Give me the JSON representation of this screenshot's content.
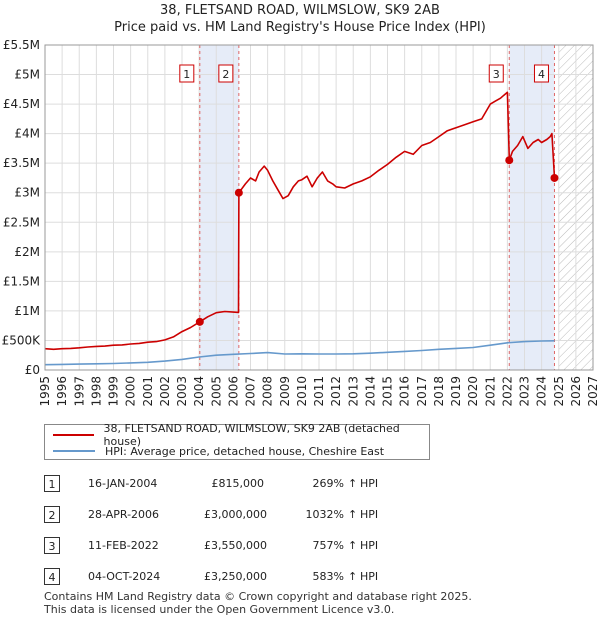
{
  "chart_data": {
    "type": "line",
    "title": "38, FLETSAND ROAD, WILMSLOW, SK9 2AB",
    "subtitle": "Price paid vs. HM Land Registry's House Price Index (HPI)",
    "ylim": [
      0,
      5500000
    ],
    "xlim": [
      1995,
      2027
    ],
    "y_ticks": [
      {
        "value": 0,
        "label": "£0"
      },
      {
        "value": 500000,
        "label": "£500K"
      },
      {
        "value": 1000000,
        "label": "£1M"
      },
      {
        "value": 1500000,
        "label": "£1.5M"
      },
      {
        "value": 2000000,
        "label": "£2M"
      },
      {
        "value": 2500000,
        "label": "£2.5M"
      },
      {
        "value": 3000000,
        "label": "£3M"
      },
      {
        "value": 3500000,
        "label": "£3.5M"
      },
      {
        "value": 4000000,
        "label": "£4M"
      },
      {
        "value": 4500000,
        "label": "£4.5M"
      },
      {
        "value": 5000000,
        "label": "£5M"
      },
      {
        "value": 5500000,
        "label": "£5.5M"
      }
    ],
    "x_ticks": [
      "1995",
      "1996",
      "1997",
      "1998",
      "1999",
      "2000",
      "2001",
      "2002",
      "2003",
      "2004",
      "2005",
      "2006",
      "2007",
      "2008",
      "2009",
      "2010",
      "2011",
      "2012",
      "2013",
      "2014",
      "2015",
      "2016",
      "2017",
      "2018",
      "2019",
      "2020",
      "2021",
      "2022",
      "2023",
      "2024",
      "2025",
      "2026",
      "2027"
    ],
    "shaded_regions": [
      [
        2004.04,
        2006.32
      ],
      [
        2022.11,
        2024.75
      ]
    ],
    "future_from": 2025.0,
    "series": [
      {
        "name": "38, FLETSAND ROAD, WILMSLOW, SK9 2AB (detached house)",
        "color": "#cc0000",
        "x": [
          1995.0,
          1995.5,
          1996.0,
          1996.5,
          1997.0,
          1997.5,
          1998.0,
          1998.5,
          1999.0,
          1999.5,
          2000.0,
          2000.5,
          2001.0,
          2001.5,
          2002.0,
          2002.5,
          2003.0,
          2003.5,
          2004.04,
          2004.5,
          2005.0,
          2005.5,
          2006.0,
          2006.3,
          2006.32,
          2006.7,
          2007.0,
          2007.3,
          2007.5,
          2007.8,
          2008.0,
          2008.3,
          2008.6,
          2008.9,
          2009.2,
          2009.5,
          2009.8,
          2010.0,
          2010.3,
          2010.6,
          2010.9,
          2011.2,
          2011.5,
          2011.8,
          2012.0,
          2012.5,
          2013.0,
          2013.5,
          2014.0,
          2014.5,
          2015.0,
          2015.5,
          2016.0,
          2016.5,
          2017.0,
          2017.5,
          2018.0,
          2018.5,
          2019.0,
          2019.5,
          2020.0,
          2020.5,
          2021.0,
          2021.3,
          2021.6,
          2021.8,
          2022.0,
          2022.11,
          2022.3,
          2022.6,
          2022.9,
          2023.2,
          2023.5,
          2023.8,
          2024.0,
          2024.3,
          2024.5,
          2024.6,
          2024.75
        ],
        "values": [
          360000,
          350000,
          360000,
          365000,
          375000,
          390000,
          400000,
          405000,
          420000,
          425000,
          440000,
          450000,
          470000,
          480000,
          510000,
          560000,
          650000,
          720000,
          815000,
          900000,
          970000,
          990000,
          980000,
          975000,
          3000000,
          3150000,
          3250000,
          3200000,
          3350000,
          3450000,
          3380000,
          3200000,
          3050000,
          2900000,
          2950000,
          3100000,
          3200000,
          3220000,
          3280000,
          3100000,
          3250000,
          3350000,
          3200000,
          3150000,
          3100000,
          3080000,
          3150000,
          3200000,
          3270000,
          3380000,
          3480000,
          3600000,
          3700000,
          3650000,
          3800000,
          3850000,
          3950000,
          4050000,
          4100000,
          4150000,
          4200000,
          4250000,
          4500000,
          4550000,
          4600000,
          4650000,
          4700000,
          3550000,
          3700000,
          3800000,
          3950000,
          3750000,
          3850000,
          3900000,
          3850000,
          3900000,
          3950000,
          4000000,
          3250000
        ]
      },
      {
        "name": "HPI: Average price, detached house, Cheshire East",
        "color": "#6699cc",
        "x": [
          1995.0,
          1996.0,
          1997.0,
          1998.0,
          1999.0,
          2000.0,
          2001.0,
          2002.0,
          2003.0,
          2004.0,
          2005.0,
          2006.0,
          2007.0,
          2008.0,
          2009.0,
          2010.0,
          2011.0,
          2012.0,
          2013.0,
          2014.0,
          2015.0,
          2016.0,
          2017.0,
          2018.0,
          2019.0,
          2020.0,
          2021.0,
          2022.0,
          2023.0,
          2024.0,
          2024.75
        ],
        "values": [
          90000,
          95000,
          100000,
          105000,
          110000,
          120000,
          130000,
          150000,
          180000,
          220000,
          250000,
          265000,
          280000,
          295000,
          270000,
          275000,
          270000,
          270000,
          275000,
          285000,
          300000,
          315000,
          330000,
          350000,
          365000,
          380000,
          420000,
          460000,
          480000,
          490000,
          495000
        ]
      }
    ],
    "sales": [
      {
        "label": "1",
        "x": 2004.04,
        "value": 815000
      },
      {
        "label": "2",
        "x": 2006.32,
        "value": 3000000
      },
      {
        "label": "3",
        "x": 2022.11,
        "value": 3550000
      },
      {
        "label": "4",
        "x": 2024.75,
        "value": 3250000
      }
    ]
  },
  "legend": {
    "property_label": "38, FLETSAND ROAD, WILMSLOW, SK9 2AB (detached house)",
    "hpi_label": "HPI: Average price, detached house, Cheshire East",
    "property_color": "#cc0000",
    "hpi_color": "#6699cc"
  },
  "transactions": [
    {
      "num": "1",
      "date": "16-JAN-2004",
      "price": "£815,000",
      "pct": "269%",
      "arrow": "↑",
      "hpi": "HPI"
    },
    {
      "num": "2",
      "date": "28-APR-2006",
      "price": "£3,000,000",
      "pct": "1032%",
      "arrow": "↑",
      "hpi": "HPI"
    },
    {
      "num": "3",
      "date": "11-FEB-2022",
      "price": "£3,550,000",
      "pct": "757%",
      "arrow": "↑",
      "hpi": "HPI"
    },
    {
      "num": "4",
      "date": "04-OCT-2024",
      "price": "£3,250,000",
      "pct": "583%",
      "arrow": "↑",
      "hpi": "HPI"
    }
  ],
  "footer": {
    "line1": "Contains HM Land Registry data © Crown copyright and database right 2025.",
    "line2": "This data is licensed under the Open Government Licence v3.0."
  }
}
